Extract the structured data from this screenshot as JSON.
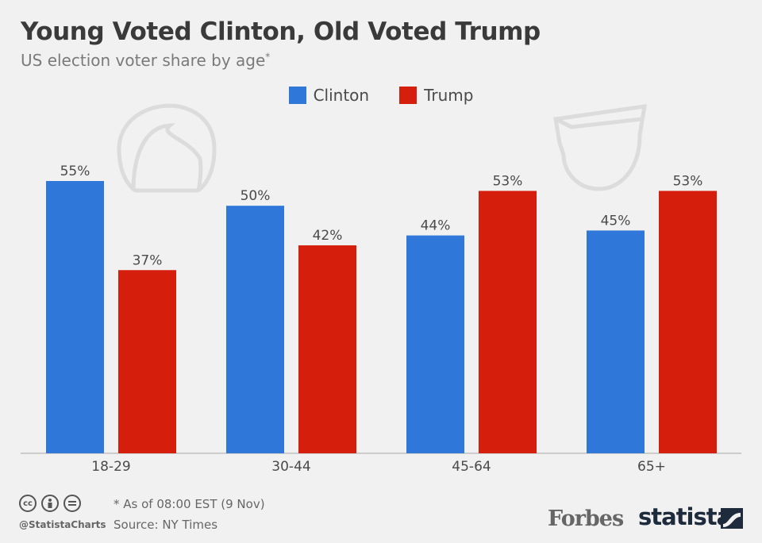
{
  "header": {
    "title": "Young Voted Clinton, Old Voted Trump",
    "subtitle": "US election voter share by age",
    "subtitle_mark": "*"
  },
  "legend": [
    {
      "label": "Clinton",
      "color": "#2f78d9"
    },
    {
      "label": "Trump",
      "color": "#d51e0c"
    }
  ],
  "chart_data": {
    "type": "bar",
    "title": "Young Voted Clinton, Old Voted Trump",
    "subtitle": "US election voter share by age*",
    "categories": [
      "18-29",
      "30-44",
      "45-64",
      "65+"
    ],
    "series": [
      {
        "name": "Clinton",
        "color": "#2f78d9",
        "values": [
          55,
          50,
          44,
          45
        ],
        "labels": [
          "55%",
          "50%",
          "44%",
          "45%"
        ]
      },
      {
        "name": "Trump",
        "color": "#d51e0c",
        "values": [
          37,
          42,
          53,
          53
        ],
        "labels": [
          "37%",
          "42%",
          "53%",
          "53%"
        ]
      }
    ],
    "ylim": [
      0,
      55
    ],
    "xlabel": "",
    "ylabel": "",
    "grid": false,
    "legend_position": "top-center"
  },
  "footer": {
    "note": "* As of 08:00 EST (9 Nov)",
    "source": "Source: NY Times",
    "handle": "@StatistaCharts",
    "cc_icons": [
      "cc-icon",
      "by-icon",
      "nd-icon"
    ],
    "brand_1": "Forbes",
    "brand_2": "statista"
  }
}
